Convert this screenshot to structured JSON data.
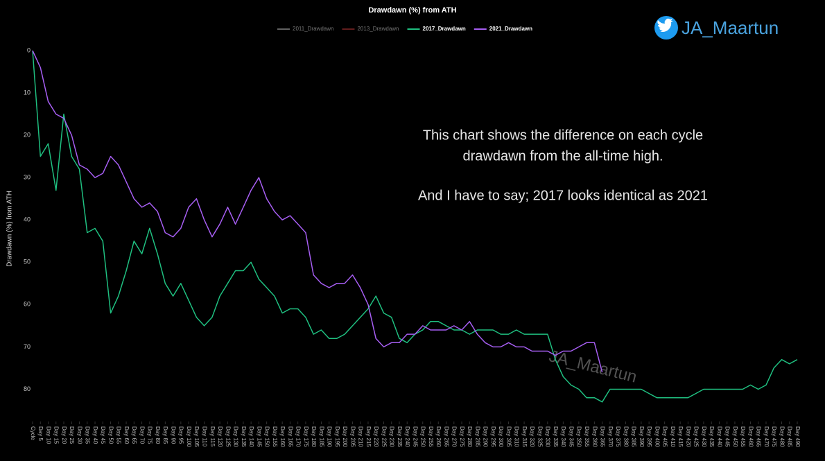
{
  "chart_data": {
    "type": "line",
    "title": "Drawdawn (%) from ATH",
    "y_label": "Drawdawn (%) from ATH",
    "handle": "JA_Maartun",
    "watermark": "JA_Maartun",
    "annotations": [
      "This chart shows the difference on each cycle",
      "drawdawn from the all-time high.",
      "And I have to say; 2017 looks identical as 2021"
    ],
    "y_inverted": true,
    "ylim": [
      0,
      85
    ],
    "yticks": [
      0,
      10,
      20,
      30,
      40,
      50,
      60,
      70,
      80
    ],
    "xlim": [
      0,
      490
    ],
    "xticks": [
      {
        "value": 0,
        "label": "Cycle"
      },
      {
        "value": 5,
        "label": "Day 5"
      },
      {
        "value": 10,
        "label": "Day 10"
      },
      {
        "value": 15,
        "label": "Day 15"
      },
      {
        "value": 20,
        "label": "Day 20"
      },
      {
        "value": 25,
        "label": "Day 25"
      },
      {
        "value": 30,
        "label": "Day 30"
      },
      {
        "value": 35,
        "label": "Day 35"
      },
      {
        "value": 40,
        "label": "Day 40"
      },
      {
        "value": 45,
        "label": "Day 45"
      },
      {
        "value": 50,
        "label": "Day 50"
      },
      {
        "value": 55,
        "label": "Day 55"
      },
      {
        "value": 60,
        "label": "Day 60"
      },
      {
        "value": 65,
        "label": "Day 65"
      },
      {
        "value": 70,
        "label": "Day 70"
      },
      {
        "value": 75,
        "label": "Day 75"
      },
      {
        "value": 80,
        "label": "Day 80"
      },
      {
        "value": 85,
        "label": "Day 85"
      },
      {
        "value": 90,
        "label": "Day 90"
      },
      {
        "value": 95,
        "label": "Day 95"
      },
      {
        "value": 100,
        "label": "Day 100"
      },
      {
        "value": 105,
        "label": "Day 105"
      },
      {
        "value": 110,
        "label": "Day 110"
      },
      {
        "value": 115,
        "label": "Day 115"
      },
      {
        "value": 120,
        "label": "Day 120"
      },
      {
        "value": 125,
        "label": "Day 125"
      },
      {
        "value": 130,
        "label": "Day 130"
      },
      {
        "value": 135,
        "label": "Day 135"
      },
      {
        "value": 140,
        "label": "Day 140"
      },
      {
        "value": 145,
        "label": "Day 145"
      },
      {
        "value": 150,
        "label": "Day 150"
      },
      {
        "value": 155,
        "label": "Day 155"
      },
      {
        "value": 160,
        "label": "Day 160"
      },
      {
        "value": 165,
        "label": "Day 165"
      },
      {
        "value": 170,
        "label": "Day 170"
      },
      {
        "value": 175,
        "label": "Day 175"
      },
      {
        "value": 180,
        "label": "Day 180"
      },
      {
        "value": 185,
        "label": "Day 185"
      },
      {
        "value": 190,
        "label": "Day 190"
      },
      {
        "value": 195,
        "label": "Day 195"
      },
      {
        "value": 200,
        "label": "Day 200"
      },
      {
        "value": 205,
        "label": "Day 205"
      },
      {
        "value": 210,
        "label": "Day 210"
      },
      {
        "value": 215,
        "label": "Day 215"
      },
      {
        "value": 220,
        "label": "Day 220"
      },
      {
        "value": 225,
        "label": "Day 225"
      },
      {
        "value": 230,
        "label": "Day 230"
      },
      {
        "value": 235,
        "label": "Day 235"
      },
      {
        "value": 240,
        "label": "Day 240"
      },
      {
        "value": 245,
        "label": "Day 245"
      },
      {
        "value": 250,
        "label": "Day 250"
      },
      {
        "value": 255,
        "label": "Day 255"
      },
      {
        "value": 260,
        "label": "Day 260"
      },
      {
        "value": 265,
        "label": "Day 265"
      },
      {
        "value": 270,
        "label": "Day 270"
      },
      {
        "value": 275,
        "label": "Day 275"
      },
      {
        "value": 280,
        "label": "Day 280"
      },
      {
        "value": 285,
        "label": "Day 285"
      },
      {
        "value": 290,
        "label": "Day 290"
      },
      {
        "value": 295,
        "label": "Day 295"
      },
      {
        "value": 300,
        "label": "Day 300"
      },
      {
        "value": 305,
        "label": "Day 305"
      },
      {
        "value": 310,
        "label": "Day 310"
      },
      {
        "value": 315,
        "label": "Day 315"
      },
      {
        "value": 320,
        "label": "Day 320"
      },
      {
        "value": 325,
        "label": "Day 325"
      },
      {
        "value": 330,
        "label": "Day 330"
      },
      {
        "value": 335,
        "label": "Day 335"
      },
      {
        "value": 340,
        "label": "Day 340"
      },
      {
        "value": 345,
        "label": "Day 345"
      },
      {
        "value": 350,
        "label": "Day 350"
      },
      {
        "value": 355,
        "label": "Day 355"
      },
      {
        "value": 360,
        "label": "Day 360"
      },
      {
        "value": 365,
        "label": "Day 365"
      },
      {
        "value": 370,
        "label": "Day 370"
      },
      {
        "value": 375,
        "label": "Day 375"
      },
      {
        "value": 380,
        "label": "Day 380"
      },
      {
        "value": 385,
        "label": "Day 385"
      },
      {
        "value": 390,
        "label": "Day 390"
      },
      {
        "value": 395,
        "label": "Day 395"
      },
      {
        "value": 400,
        "label": "Day 400"
      },
      {
        "value": 405,
        "label": "Day 405"
      },
      {
        "value": 410,
        "label": "Day 410"
      },
      {
        "value": 415,
        "label": "Day 415"
      },
      {
        "value": 420,
        "label": "Day 420"
      },
      {
        "value": 425,
        "label": "Day 425"
      },
      {
        "value": 430,
        "label": "Day 430"
      },
      {
        "value": 435,
        "label": "Day 435"
      },
      {
        "value": 440,
        "label": "Day 440"
      },
      {
        "value": 445,
        "label": "Day 445"
      },
      {
        "value": 450,
        "label": "Day 450"
      },
      {
        "value": 455,
        "label": "Day 455"
      },
      {
        "value": 460,
        "label": "Day 460"
      },
      {
        "value": 465,
        "label": "Day 465"
      },
      {
        "value": 470,
        "label": "Day 470"
      },
      {
        "value": 475,
        "label": "Day 475"
      },
      {
        "value": 480,
        "label": "Day 480"
      },
      {
        "value": 485,
        "label": "Day 485"
      },
      {
        "value": 490,
        "label": "Day 490"
      }
    ],
    "x": [
      0,
      5,
      10,
      15,
      20,
      25,
      30,
      35,
      40,
      45,
      50,
      55,
      60,
      65,
      70,
      75,
      80,
      85,
      90,
      95,
      100,
      105,
      110,
      115,
      120,
      125,
      130,
      135,
      140,
      145,
      150,
      155,
      160,
      165,
      170,
      175,
      180,
      185,
      190,
      195,
      200,
      205,
      210,
      215,
      220,
      225,
      230,
      235,
      240,
      245,
      250,
      255,
      260,
      265,
      270,
      275,
      280,
      285,
      290,
      295,
      300,
      305,
      310,
      315,
      320,
      325,
      330,
      335,
      340,
      345,
      350,
      355,
      360,
      365,
      370,
      375,
      380,
      385,
      390,
      395,
      400,
      405,
      410,
      415,
      420,
      425,
      430,
      435,
      440,
      445,
      450,
      455,
      460,
      465,
      470,
      475,
      480,
      485,
      490
    ],
    "series": [
      {
        "name": "2011_Drawdawn",
        "color": "#8a8a8a",
        "hidden": true
      },
      {
        "name": "2013_Drawdawn",
        "color": "#8b2a2a",
        "hidden": true
      },
      {
        "name": "2017_Drawdawn",
        "color": "#1fbf80",
        "values": [
          0,
          25,
          22,
          33,
          15,
          25,
          28,
          43,
          42,
          45,
          62,
          58,
          52,
          45,
          48,
          42,
          48,
          55,
          58,
          55,
          59,
          63,
          65,
          63,
          58,
          55,
          52,
          52,
          50,
          54,
          56,
          58,
          62,
          61,
          61,
          63,
          67,
          66,
          68,
          68,
          67,
          65,
          63,
          61,
          58,
          62,
          63,
          68,
          69,
          67,
          66,
          64,
          64,
          65,
          66,
          66,
          67,
          66,
          66,
          66,
          67,
          67,
          66,
          67,
          67,
          67,
          67,
          73,
          77,
          79,
          80,
          82,
          82,
          83,
          80,
          80,
          80,
          80,
          80,
          81,
          82,
          82,
          82,
          82,
          82,
          81,
          80,
          80,
          80,
          80,
          80,
          80,
          79,
          80,
          79,
          75,
          73,
          74,
          73
        ]
      },
      {
        "name": "2021_Drawdawn",
        "color": "#a65ef2",
        "values": [
          0,
          4,
          12,
          15,
          16,
          20,
          27,
          28,
          30,
          29,
          25,
          27,
          31,
          35,
          37,
          36,
          38,
          43,
          44,
          42,
          37,
          35,
          40,
          44,
          41,
          37,
          41,
          37,
          33,
          30,
          35,
          38,
          40,
          39,
          41,
          43,
          53,
          55,
          56,
          55,
          55,
          53,
          56,
          60,
          68,
          70,
          69,
          69,
          67,
          67,
          65,
          66,
          66,
          66,
          65,
          66,
          64,
          67,
          69,
          70,
          70,
          69,
          70,
          70,
          71,
          71,
          71,
          72,
          71,
          71,
          70,
          69,
          69,
          76,
          null,
          null,
          null,
          null,
          null,
          null,
          null,
          null,
          null,
          null,
          null,
          null,
          null,
          null,
          null,
          null,
          null,
          null,
          null,
          null,
          null,
          null,
          null,
          null,
          null
        ]
      }
    ]
  }
}
